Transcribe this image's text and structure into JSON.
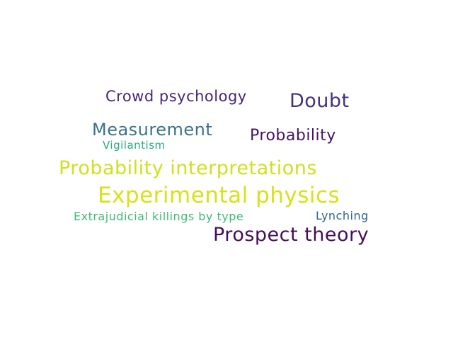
{
  "word_cloud": {
    "words": [
      {
        "text": "Crowd psychology",
        "color": "#482575"
      },
      {
        "text": "Doubt",
        "color": "#46327e"
      },
      {
        "text": "Measurement",
        "color": "#3b728b"
      },
      {
        "text": "Probability",
        "color": "#471365"
      },
      {
        "text": "Vigilantism",
        "color": "#27ad81"
      },
      {
        "text": "Probability interpretations",
        "color": "#d0e11c"
      },
      {
        "text": "Experimental physics",
        "color": "#d8e219"
      },
      {
        "text": "Extrajudicial killings by type",
        "color": "#3dbc74"
      },
      {
        "text": "Lynching",
        "color": "#33638d"
      },
      {
        "text": "Prospect theory",
        "color": "#440f57"
      }
    ]
  }
}
